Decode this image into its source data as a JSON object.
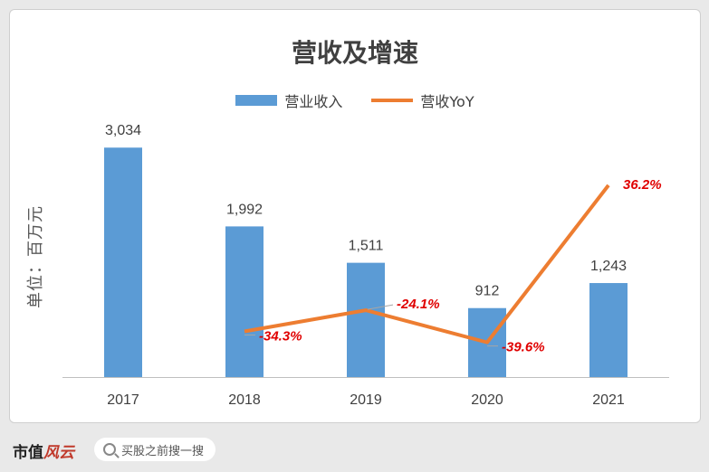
{
  "footer": {
    "logo_main": "市值",
    "logo_accent": "风云",
    "search_label": "买股之前搜一搜"
  },
  "colors": {
    "bar": "#5b9bd5",
    "line": "#ed7d31",
    "pct_label": "#e00000"
  },
  "chart_data": {
    "type": "bar",
    "title": "营收及增速",
    "ylabel": "单位：百万元",
    "categories": [
      "2017",
      "2018",
      "2019",
      "2020",
      "2021"
    ],
    "series": [
      {
        "name": "营业收入",
        "type": "bar",
        "values": [
          3034,
          1992,
          1511,
          912,
          1243
        ],
        "labels": [
          "3,034",
          "1,992",
          "1,511",
          "912",
          "1,243"
        ]
      },
      {
        "name": "营收YoY",
        "type": "line",
        "values": [
          null,
          -34.3,
          -24.1,
          -39.6,
          36.2
        ],
        "labels": [
          "",
          "-34.3%",
          "-24.1%",
          "-39.6%",
          "36.2%"
        ]
      }
    ],
    "ylim": [
      0,
      3300
    ],
    "y2lim": [
      -45,
      44
    ],
    "legend": "top-center",
    "grid": false
  }
}
